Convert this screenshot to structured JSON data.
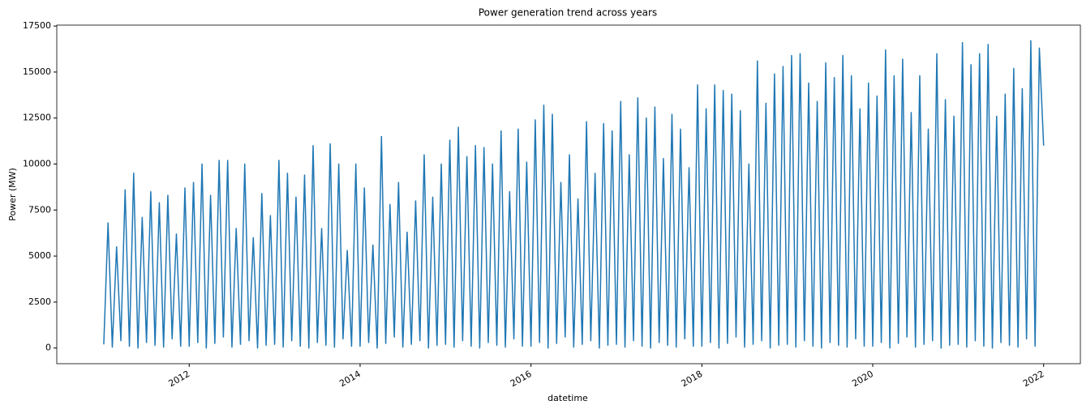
{
  "chart_data": {
    "type": "line",
    "title": "Power generation trend across years",
    "x_label": "datetime",
    "y_label": "Power (MW)",
    "color": "#1f77b4",
    "x": [
      2011,
      2011.05,
      2011.1,
      2011.15,
      2011.2,
      2011.25,
      2011.3,
      2011.35,
      2011.4,
      2011.45,
      2011.5,
      2011.55,
      2011.6,
      2011.65,
      2011.7,
      2011.75,
      2011.8,
      2011.85,
      2011.9,
      2011.95,
      2012,
      2012.05,
      2012.1,
      2012.15,
      2012.2,
      2012.25,
      2012.3,
      2012.35,
      2012.4,
      2012.45,
      2012.5,
      2012.55,
      2012.6,
      2012.65,
      2012.7,
      2012.75,
      2012.8,
      2012.85,
      2012.9,
      2012.95,
      2013,
      2013.05,
      2013.1,
      2013.15,
      2013.2,
      2013.25,
      2013.3,
      2013.35,
      2013.4,
      2013.45,
      2013.5,
      2013.55,
      2013.6,
      2013.65,
      2013.7,
      2013.75,
      2013.8,
      2013.85,
      2013.9,
      2013.95,
      2014,
      2014.05,
      2014.1,
      2014.15,
      2014.2,
      2014.25,
      2014.3,
      2014.35,
      2014.4,
      2014.45,
      2014.5,
      2014.55,
      2014.6,
      2014.65,
      2014.7,
      2014.75,
      2014.8,
      2014.85,
      2014.9,
      2014.95,
      2015,
      2015.05,
      2015.1,
      2015.15,
      2015.2,
      2015.25,
      2015.3,
      2015.35,
      2015.4,
      2015.45,
      2015.5,
      2015.55,
      2015.6,
      2015.65,
      2015.7,
      2015.75,
      2015.8,
      2015.85,
      2015.9,
      2015.95,
      2016,
      2016.05,
      2016.1,
      2016.15,
      2016.2,
      2016.25,
      2016.3,
      2016.35,
      2016.4,
      2016.45,
      2016.5,
      2016.55,
      2016.6,
      2016.65,
      2016.7,
      2016.75,
      2016.8,
      2016.85,
      2016.9,
      2016.95,
      2017,
      2017.05,
      2017.1,
      2017.15,
      2017.2,
      2017.25,
      2017.3,
      2017.35,
      2017.4,
      2017.45,
      2017.5,
      2017.55,
      2017.6,
      2017.65,
      2017.7,
      2017.75,
      2017.8,
      2017.85,
      2017.9,
      2017.95,
      2018,
      2018.05,
      2018.1,
      2018.15,
      2018.2,
      2018.25,
      2018.3,
      2018.35,
      2018.4,
      2018.45,
      2018.5,
      2018.55,
      2018.6,
      2018.65,
      2018.7,
      2018.75,
      2018.8,
      2018.85,
      2018.9,
      2018.95,
      2019,
      2019.05,
      2019.1,
      2019.15,
      2019.2,
      2019.25,
      2019.3,
      2019.35,
      2019.4,
      2019.45,
      2019.5,
      2019.55,
      2019.6,
      2019.65,
      2019.7,
      2019.75,
      2019.8,
      2019.85,
      2019.9,
      2019.95,
      2020,
      2020.05,
      2020.1,
      2020.15,
      2020.2,
      2020.25,
      2020.3,
      2020.35,
      2020.4,
      2020.45,
      2020.5,
      2020.55,
      2020.6,
      2020.65,
      2020.7,
      2020.75,
      2020.8,
      2020.85,
      2020.9,
      2020.95,
      2021,
      2021.05,
      2021.1,
      2021.15,
      2021.2,
      2021.25,
      2021.3,
      2021.35,
      2021.4,
      2021.45,
      2021.5,
      2021.55,
      2021.6,
      2021.65,
      2021.7,
      2021.75,
      2021.8,
      2021.85,
      2021.9,
      2021.95,
      2022
    ],
    "values": [
      200,
      6800,
      50,
      5500,
      400,
      8600,
      100,
      9500,
      0,
      7100,
      300,
      8500,
      150,
      7900,
      50,
      8300,
      500,
      6200,
      100,
      8700,
      100,
      9000,
      300,
      10000,
      0,
      8300,
      250,
      10200,
      600,
      10200,
      50,
      6500,
      200,
      10000,
      400,
      6000,
      0,
      8400,
      150,
      7200,
      200,
      10200,
      50,
      9500,
      400,
      8200,
      100,
      9400,
      0,
      11000,
      300,
      6500,
      150,
      11100,
      50,
      10000,
      500,
      5300,
      100,
      10000,
      100,
      8700,
      300,
      5600,
      0,
      11500,
      250,
      7800,
      600,
      9000,
      50,
      6300,
      200,
      8000,
      400,
      10500,
      0,
      8200,
      150,
      10000,
      200,
      11300,
      50,
      12000,
      400,
      10400,
      100,
      11000,
      0,
      10900,
      300,
      10000,
      150,
      11800,
      50,
      8500,
      500,
      11900,
      100,
      10100,
      100,
      12400,
      300,
      13200,
      0,
      12700,
      250,
      9000,
      600,
      10500,
      50,
      8100,
      200,
      12300,
      400,
      9500,
      0,
      12200,
      150,
      11800,
      200,
      13400,
      50,
      10500,
      400,
      13600,
      100,
      12500,
      0,
      13100,
      300,
      10300,
      150,
      12700,
      50,
      11900,
      500,
      9800,
      100,
      14300,
      100,
      13000,
      300,
      14300,
      0,
      14000,
      250,
      13800,
      600,
      12900,
      50,
      10000,
      200,
      15600,
      400,
      13300,
      0,
      14900,
      150,
      15300,
      200,
      15900,
      50,
      16000,
      400,
      14400,
      100,
      13400,
      0,
      15500,
      300,
      14700,
      150,
      15900,
      50,
      14800,
      500,
      13000,
      100,
      14400,
      100,
      13700,
      300,
      16200,
      0,
      14800,
      250,
      15700,
      600,
      12800,
      50,
      14800,
      200,
      11900,
      400,
      16000,
      0,
      13500,
      150,
      12600,
      200,
      16600,
      50,
      15400,
      400,
      16000,
      100,
      16500,
      0,
      12600,
      300,
      13800,
      150,
      15200,
      50,
      14100,
      500,
      16700,
      100,
      16300,
      11000
    ],
    "xlim": [
      2010.45,
      2022.43
    ],
    "xticks": [
      2012,
      2014,
      2016,
      2018,
      2020,
      2022
    ],
    "ylim": [
      -850,
      17550
    ],
    "yticks": [
      0,
      2500,
      5000,
      7500,
      10000,
      12500,
      15000,
      17500
    ]
  }
}
